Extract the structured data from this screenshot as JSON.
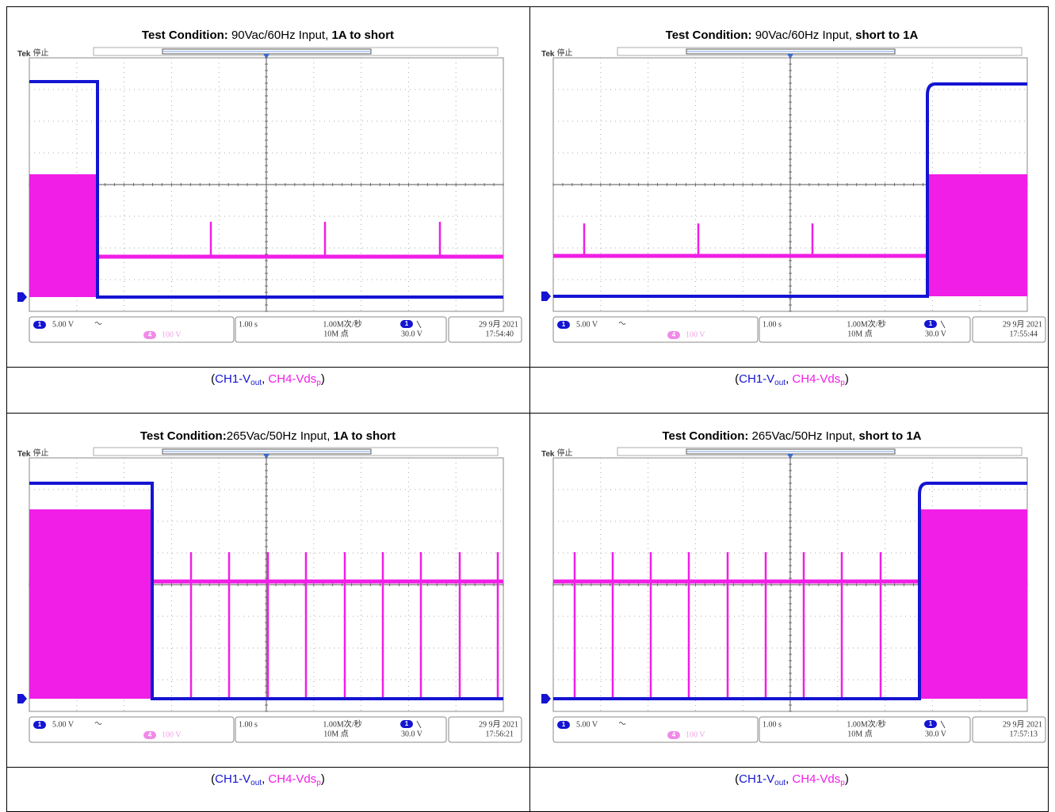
{
  "panels": [
    {
      "title": {
        "label": "Test Condition:",
        "input": " 90Vac/60Hz Input, ",
        "mode": "1A to short"
      },
      "scope": {
        "brand": "Tek",
        "state": "停止",
        "ch1_marker": "1",
        "ch1_scale": "5.00 V",
        "ch4_marker": "4",
        "ch4_scale": "100 V",
        "timebase": "1.00 s",
        "sample_rate": "1.00M次/秒",
        "record_length": "10M 点",
        "trigger_channel": "1",
        "trigger_level": "30.0 V",
        "date": "29 9月 2021",
        "time": "17:54:40"
      },
      "caption": {
        "open": "(",
        "ch1": "CH1-V",
        "ch1_sub": "out",
        "sep": ", ",
        "ch4": "CH4-Vds",
        "ch4_sub": "p",
        "close": ")"
      }
    },
    {
      "title": {
        "label": "Test Condition:",
        "input": " 90Vac/60Hz Input, ",
        "mode": "short to 1A"
      },
      "scope": {
        "brand": "Tek",
        "state": "停止",
        "ch1_marker": "1",
        "ch1_scale": "5.00 V",
        "ch4_marker": "4",
        "ch4_scale": "100 V",
        "timebase": "1.00 s",
        "sample_rate": "1.00M次/秒",
        "record_length": "10M 点",
        "trigger_channel": "1",
        "trigger_level": "30.0 V",
        "date": "29 9月 2021",
        "time": "17:55:44"
      },
      "caption": {
        "open": "(",
        "ch1": "CH1-V",
        "ch1_sub": "out",
        "sep": ", ",
        "ch4": "CH4-Vds",
        "ch4_sub": "p",
        "close": ")"
      }
    },
    {
      "title": {
        "label": "Test Condition:",
        "input": "265Vac/50Hz Input, ",
        "mode": "1A to short"
      },
      "scope": {
        "brand": "Tek",
        "state": "停止",
        "ch1_marker": "1",
        "ch1_scale": "5.00 V",
        "ch4_marker": "4",
        "ch4_scale": "100 V",
        "timebase": "1.00 s",
        "sample_rate": "1.00M次/秒",
        "record_length": "10M 点",
        "trigger_channel": "1",
        "trigger_level": "30.0 V",
        "date": "29 9月 2021",
        "time": "17:56:21"
      },
      "caption": {
        "open": "(",
        "ch1": "CH1-V",
        "ch1_sub": "out",
        "sep": ", ",
        "ch4": "CH4-Vds",
        "ch4_sub": "p",
        "close": ")"
      }
    },
    {
      "title": {
        "label": "Test Condition:",
        "input": " 265Vac/50Hz Input, ",
        "mode": "short to 1A"
      },
      "scope": {
        "brand": "Tek",
        "state": "停止",
        "ch1_marker": "1",
        "ch1_scale": "5.00 V",
        "ch4_marker": "4",
        "ch4_scale": "100 V",
        "timebase": "1.00 s",
        "sample_rate": "1.00M次/秒",
        "record_length": "10M 点",
        "trigger_channel": "1",
        "trigger_level": "30.0 V",
        "date": "29 9月 2021",
        "time": "17:57:13"
      },
      "caption": {
        "open": "(",
        "ch1": "CH1-V",
        "ch1_sub": "out",
        "sep": ", ",
        "ch4": "CH4-Vds",
        "ch4_sub": "p",
        "close": ")"
      }
    }
  ]
}
